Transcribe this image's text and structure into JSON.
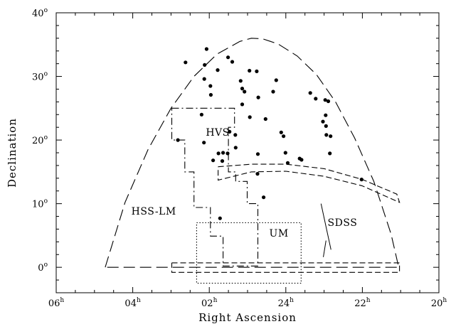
{
  "chart_data": {
    "type": "scatter",
    "title": "",
    "xlabel": "Right Ascension",
    "ylabel": "Declination",
    "x_unit": "h",
    "y_unit": "°",
    "xlim": [
      6,
      -4
    ],
    "ylim": [
      -4,
      40
    ],
    "x_reversed": true,
    "x_ticks": [
      {
        "value": 6,
        "label": "06",
        "sup": "h"
      },
      {
        "value": 4,
        "label": "04",
        "sup": "h"
      },
      {
        "value": 2,
        "label": "02",
        "sup": "h"
      },
      {
        "value": 0,
        "label": "24",
        "sup": "h"
      },
      {
        "value": -2,
        "label": "22",
        "sup": "h"
      },
      {
        "value": -4,
        "label": "20",
        "sup": "h"
      }
    ],
    "y_ticks": [
      {
        "value": 0,
        "label": "0",
        "sup": "o"
      },
      {
        "value": 10,
        "label": "10",
        "sup": "o"
      },
      {
        "value": 20,
        "label": "20",
        "sup": "o"
      },
      {
        "value": 30,
        "label": "30",
        "sup": "o"
      },
      {
        "value": 40,
        "label": "40",
        "sup": "o"
      }
    ],
    "grid": false,
    "points": [
      {
        "x": 2.62,
        "y": 32.2
      },
      {
        "x": 2.07,
        "y": 34.3
      },
      {
        "x": 2.12,
        "y": 31.8
      },
      {
        "x": 2.13,
        "y": 29.6
      },
      {
        "x": 1.97,
        "y": 28.5
      },
      {
        "x": 1.96,
        "y": 27.1
      },
      {
        "x": 1.78,
        "y": 31.0
      },
      {
        "x": 1.51,
        "y": 33.0
      },
      {
        "x": 1.4,
        "y": 32.3
      },
      {
        "x": 1.18,
        "y": 29.3
      },
      {
        "x": 1.14,
        "y": 28.1
      },
      {
        "x": 1.08,
        "y": 27.6
      },
      {
        "x": 1.14,
        "y": 25.6
      },
      {
        "x": 0.95,
        "y": 30.9
      },
      {
        "x": 0.76,
        "y": 30.8
      },
      {
        "x": 0.72,
        "y": 26.7
      },
      {
        "x": 0.25,
        "y": 29.4
      },
      {
        "x": 0.33,
        "y": 27.6
      },
      {
        "x": -0.64,
        "y": 27.4
      },
      {
        "x": -0.78,
        "y": 26.5
      },
      {
        "x": -1.03,
        "y": 26.3
      },
      {
        "x": -1.11,
        "y": 26.1
      },
      {
        "x": -0.97,
        "y": 22.9
      },
      {
        "x": -1.04,
        "y": 23.9
      },
      {
        "x": -1.05,
        "y": 22.2
      },
      {
        "x": -1.06,
        "y": 20.8
      },
      {
        "x": -1.17,
        "y": 20.6
      },
      {
        "x": -1.15,
        "y": 17.9
      },
      {
        "x": 0.12,
        "y": 21.2
      },
      {
        "x": 0.06,
        "y": 20.6
      },
      {
        "x": 0.01,
        "y": 18.0
      },
      {
        "x": -0.36,
        "y": 17.1
      },
      {
        "x": -0.41,
        "y": 16.9
      },
      {
        "x": -0.05,
        "y": 16.4
      },
      {
        "x": 0.53,
        "y": 23.3
      },
      {
        "x": 0.94,
        "y": 23.6
      },
      {
        "x": 0.73,
        "y": 17.8
      },
      {
        "x": 1.47,
        "y": 21.3
      },
      {
        "x": 1.32,
        "y": 20.8
      },
      {
        "x": 1.31,
        "y": 18.8
      },
      {
        "x": 1.64,
        "y": 18.0
      },
      {
        "x": 1.76,
        "y": 17.9
      },
      {
        "x": 1.52,
        "y": 17.9
      },
      {
        "x": 1.66,
        "y": 16.7
      },
      {
        "x": 1.9,
        "y": 16.8
      },
      {
        "x": 2.2,
        "y": 24.0
      },
      {
        "x": 2.14,
        "y": 19.6
      },
      {
        "x": 2.82,
        "y": 20.0
      },
      {
        "x": 0.74,
        "y": 14.7
      },
      {
        "x": 0.58,
        "y": 11.0
      },
      {
        "x": -1.98,
        "y": 13.8
      },
      {
        "x": 1.72,
        "y": 7.7
      }
    ],
    "regions": [
      {
        "name": "HVS",
        "style": "dashdot",
        "path": [
          [
            2.98,
            25.0
          ],
          [
            1.34,
            25.0
          ],
          [
            1.34,
            22.0
          ],
          [
            1.5,
            22.0
          ],
          [
            1.5,
            15.0
          ],
          [
            1.31,
            15.0
          ],
          [
            1.31,
            13.5
          ],
          [
            1.01,
            13.5
          ],
          [
            1.01,
            10.0
          ],
          [
            0.73,
            10.0
          ],
          [
            0.73,
            0.2
          ],
          [
            1.64,
            0.2
          ],
          [
            1.64,
            4.9
          ],
          [
            1.97,
            4.9
          ],
          [
            1.97,
            9.4
          ],
          [
            2.4,
            9.4
          ],
          [
            2.4,
            15.0
          ],
          [
            2.64,
            15.0
          ],
          [
            2.64,
            20.0
          ],
          [
            2.98,
            20.0
          ],
          [
            2.98,
            25.0
          ]
        ]
      },
      {
        "name": "UM",
        "style": "dotted",
        "path": [
          [
            2.33,
            7.0
          ],
          [
            -0.4,
            7.0
          ],
          [
            -0.4,
            -2.5
          ],
          [
            2.33,
            -2.5
          ],
          [
            2.33,
            7.0
          ]
        ]
      },
      {
        "name": "SDSS",
        "style": "dashed",
        "path": [
          [
            1.77,
            15.8
          ],
          [
            0.9,
            16.2
          ],
          [
            0,
            16.2
          ],
          [
            -1.0,
            15.5
          ],
          [
            -2.0,
            13.8
          ],
          [
            -2.9,
            11.5
          ],
          [
            -2.97,
            10.2
          ],
          [
            -2.0,
            12.8
          ],
          [
            -1.0,
            14.3
          ],
          [
            0,
            15.1
          ],
          [
            0.9,
            15.0
          ],
          [
            1.77,
            13.7
          ],
          [
            1.77,
            15.8
          ]
        ]
      },
      {
        "name": "SDSS-equator",
        "style": "dashed",
        "path": [
          [
            2.98,
            0.7
          ],
          [
            -2.97,
            0.7
          ],
          [
            -2.97,
            -0.8
          ],
          [
            2.98,
            -0.8
          ],
          [
            2.98,
            0.7
          ]
        ]
      },
      {
        "name": "HSS-LM",
        "style": "longdash",
        "path": [
          [
            4.72,
            0.0
          ],
          [
            4.2,
            10.2
          ],
          [
            3.6,
            18.5
          ],
          [
            3.0,
            25.0
          ],
          [
            2.4,
            30.0
          ],
          [
            1.8,
            33.5
          ],
          [
            1.2,
            35.5
          ],
          [
            0.9,
            36.0
          ],
          [
            0.6,
            35.9
          ],
          [
            0.2,
            35.1
          ],
          [
            -0.3,
            33.2
          ],
          [
            -0.8,
            30.3
          ],
          [
            -1.3,
            26.0
          ],
          [
            -1.8,
            20.3
          ],
          [
            -2.3,
            13.5
          ],
          [
            -2.75,
            5.2
          ],
          [
            -2.95,
            0.0
          ],
          [
            4.72,
            0.0
          ]
        ]
      }
    ],
    "labels": [
      {
        "text": "HVS",
        "x": 1.78,
        "y": 20.7
      },
      {
        "text": "HSS-LM",
        "x": 3.45,
        "y": 8.3
      },
      {
        "text": "UM",
        "x": 0.18,
        "y": 4.8
      },
      {
        "text": "SDSS",
        "x": -1.48,
        "y": 6.5
      }
    ],
    "pointer_line": {
      "from": [
        -0.92,
        10.0
      ],
      "to": [
        -1.18,
        5.0
      ],
      "to2": [
        -0.98,
        1.6
      ]
    }
  }
}
